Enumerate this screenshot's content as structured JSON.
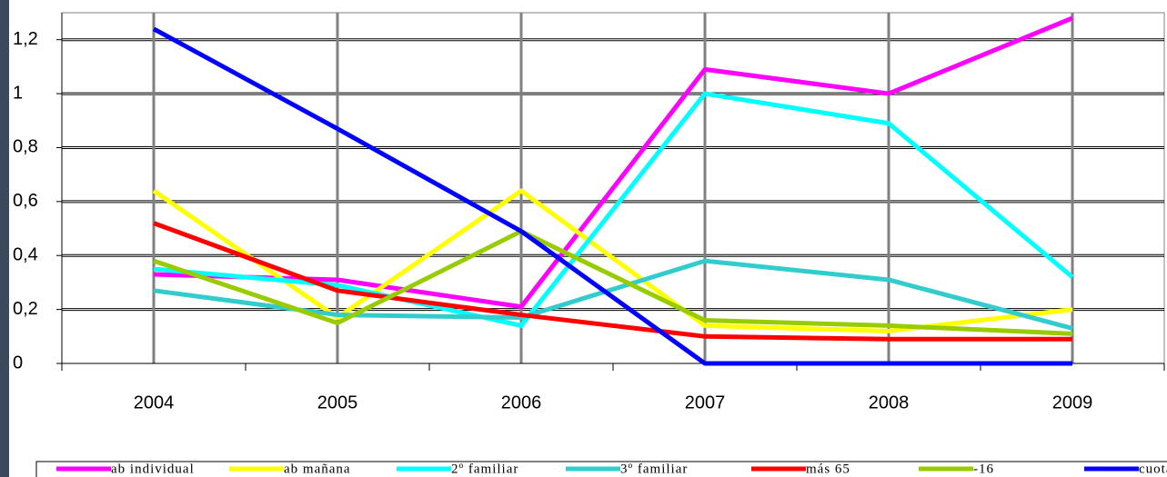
{
  "chart_data": {
    "type": "line",
    "categories": [
      "2004",
      "2005",
      "2006",
      "2007",
      "2008",
      "2009"
    ],
    "series": [
      {
        "name": "ab individual",
        "color": "#ff00ff",
        "values": [
          0.33,
          0.31,
          0.21,
          1.09,
          1.0,
          1.28
        ]
      },
      {
        "name": "ab mañana",
        "color": "#ffff00",
        "values": [
          0.64,
          0.17,
          0.64,
          0.14,
          0.12,
          0.2
        ]
      },
      {
        "name": "2º familiar",
        "color": "#00ffff",
        "values": [
          0.35,
          0.29,
          0.14,
          1.0,
          0.89,
          0.32
        ]
      },
      {
        "name": "3º familiar",
        "color": "#33cccc",
        "values": [
          0.27,
          0.18,
          0.17,
          0.38,
          0.31,
          0.13
        ]
      },
      {
        "name": "más 65",
        "color": "#ff0000",
        "values": [
          0.52,
          0.27,
          0.18,
          0.1,
          0.09,
          0.09
        ]
      },
      {
        "name": "-16",
        "color": "#99cc00",
        "values": [
          0.38,
          0.15,
          0.49,
          0.16,
          0.14,
          0.11
        ]
      },
      {
        "name": "cuota mant",
        "color": "#0000ff",
        "values": [
          1.24,
          0.87,
          0.49,
          0.0,
          0.0,
          0.0
        ]
      }
    ],
    "ylim": [
      0,
      1.3
    ],
    "yticks": [
      0,
      {
        "value": 0.2,
        "label": "0,2"
      },
      {
        "value": 0.4,
        "label": "0,4"
      },
      {
        "value": 0.6,
        "label": "0,6"
      },
      {
        "value": 0.8,
        "label": "0,8"
      },
      1,
      {
        "value": 1.2,
        "label": "1,2"
      }
    ],
    "grid": true,
    "legend": "bottom"
  }
}
